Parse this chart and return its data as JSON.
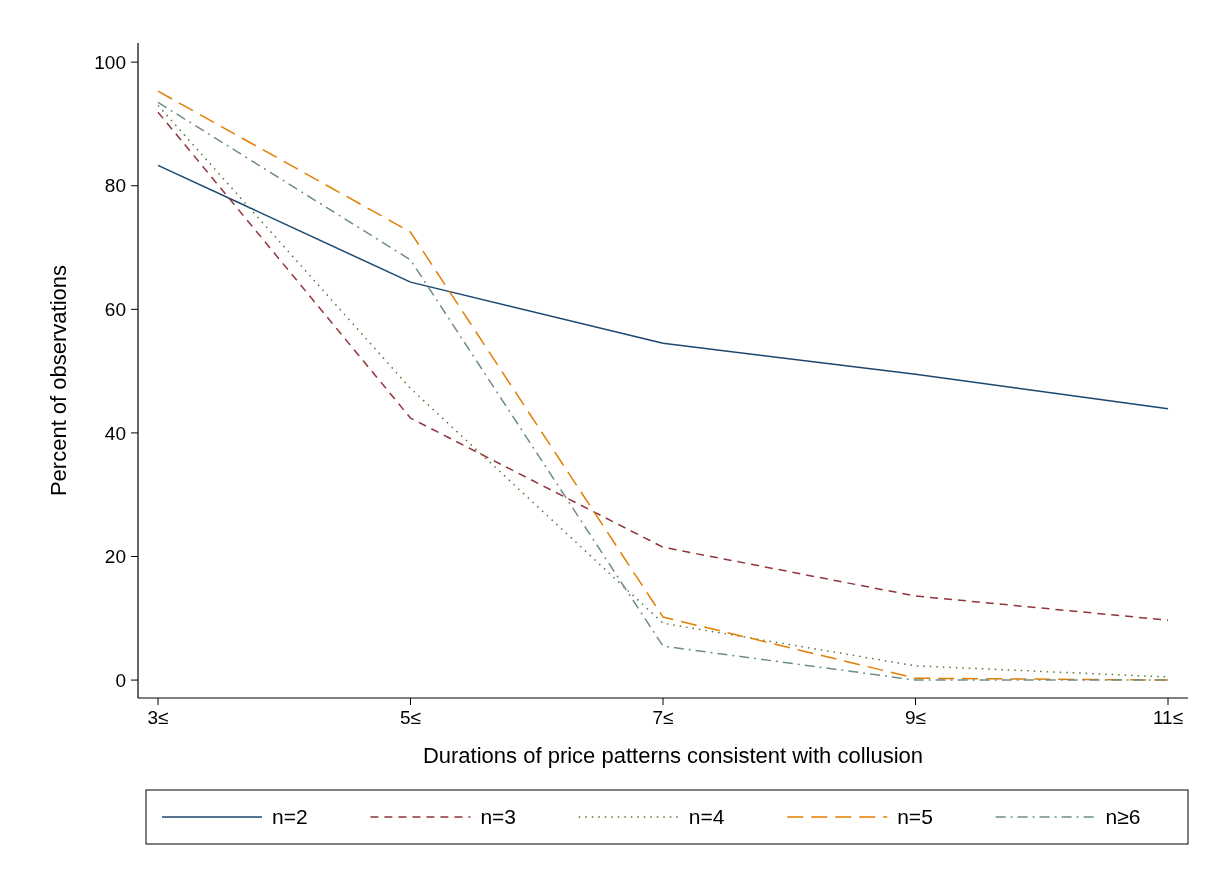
{
  "chart_data": {
    "type": "line",
    "xlabel": "Durations of price patterns consistent with collusion",
    "ylabel": "Percent of observations",
    "categories": [
      "3≤",
      "5≤",
      "7≤",
      "9≤",
      "11≤"
    ],
    "ylim": [
      -2.9,
      103.1
    ],
    "yticks": [
      0,
      20,
      40,
      60,
      80,
      100
    ],
    "grid": false,
    "legend": "bottom",
    "marker": "none",
    "series": [
      {
        "name": "n=2",
        "color": "#1a476f",
        "line_style": "solid",
        "values": [
          83.3,
          64.4,
          54.5,
          49.5,
          43.9
        ]
      },
      {
        "name": "n=3",
        "color": "#90353b",
        "line_style": "dashed",
        "values": [
          91.9,
          42.4,
          21.5,
          13.6,
          9.7
        ]
      },
      {
        "name": "n=4",
        "color": "#55752f",
        "line_style": "dotted",
        "values": [
          93,
          47.2,
          9.2,
          2.3,
          0.5
        ]
      },
      {
        "name": "n=5",
        "color": "#e37e00",
        "line_style": "longdash",
        "values": [
          95.3,
          72.5,
          10.2,
          0.3,
          0
        ]
      },
      {
        "name": "n≥6",
        "color": "#6e8e84",
        "line_style": "dashdot",
        "values": [
          93.5,
          68,
          5.5,
          0,
          0
        ]
      }
    ]
  }
}
